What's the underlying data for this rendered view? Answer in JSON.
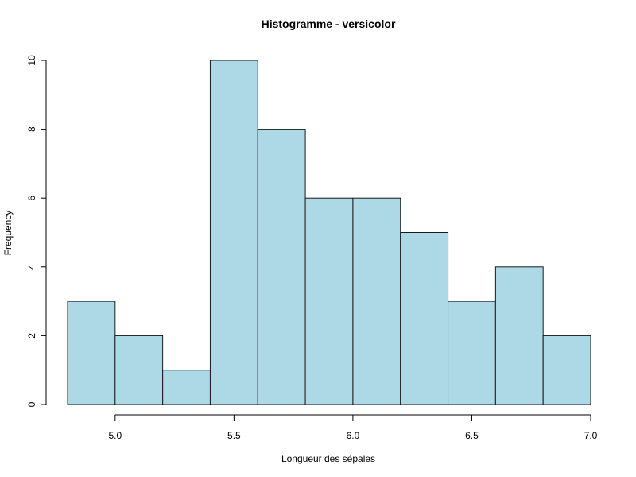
{
  "chart_data": {
    "type": "histogram",
    "title": "Histogramme - versicolor",
    "xlabel": "Longueur des sépales",
    "ylabel": "Frequency",
    "bins": [
      {
        "x0": 4.8,
        "x1": 5.0,
        "count": 3
      },
      {
        "x0": 5.0,
        "x1": 5.2,
        "count": 2
      },
      {
        "x0": 5.2,
        "x1": 5.4,
        "count": 1
      },
      {
        "x0": 5.4,
        "x1": 5.6,
        "count": 10
      },
      {
        "x0": 5.6,
        "x1": 5.8,
        "count": 8
      },
      {
        "x0": 5.8,
        "x1": 6.0,
        "count": 6
      },
      {
        "x0": 6.0,
        "x1": 6.2,
        "count": 6
      },
      {
        "x0": 6.2,
        "x1": 6.4,
        "count": 5
      },
      {
        "x0": 6.4,
        "x1": 6.6,
        "count": 3
      },
      {
        "x0": 6.6,
        "x1": 6.8,
        "count": 4
      },
      {
        "x0": 6.8,
        "x1": 7.0,
        "count": 2
      }
    ],
    "xlim": [
      4.8,
      7.0
    ],
    "ylim": [
      0,
      10
    ],
    "x_ticks": [
      {
        "value": 5.0,
        "label": "5.0"
      },
      {
        "value": 5.5,
        "label": "5.5"
      },
      {
        "value": 6.0,
        "label": "6.0"
      },
      {
        "value": 6.5,
        "label": "6.5"
      },
      {
        "value": 7.0,
        "label": "7.0"
      }
    ],
    "y_ticks": [
      {
        "value": 0,
        "label": "0"
      },
      {
        "value": 2,
        "label": "2"
      },
      {
        "value": 4,
        "label": "4"
      },
      {
        "value": 6,
        "label": "6"
      },
      {
        "value": 8,
        "label": "8"
      },
      {
        "value": 10,
        "label": "10"
      }
    ],
    "bar_color": "#add8e6",
    "border_color": "#1a1a1a",
    "grid": false
  }
}
